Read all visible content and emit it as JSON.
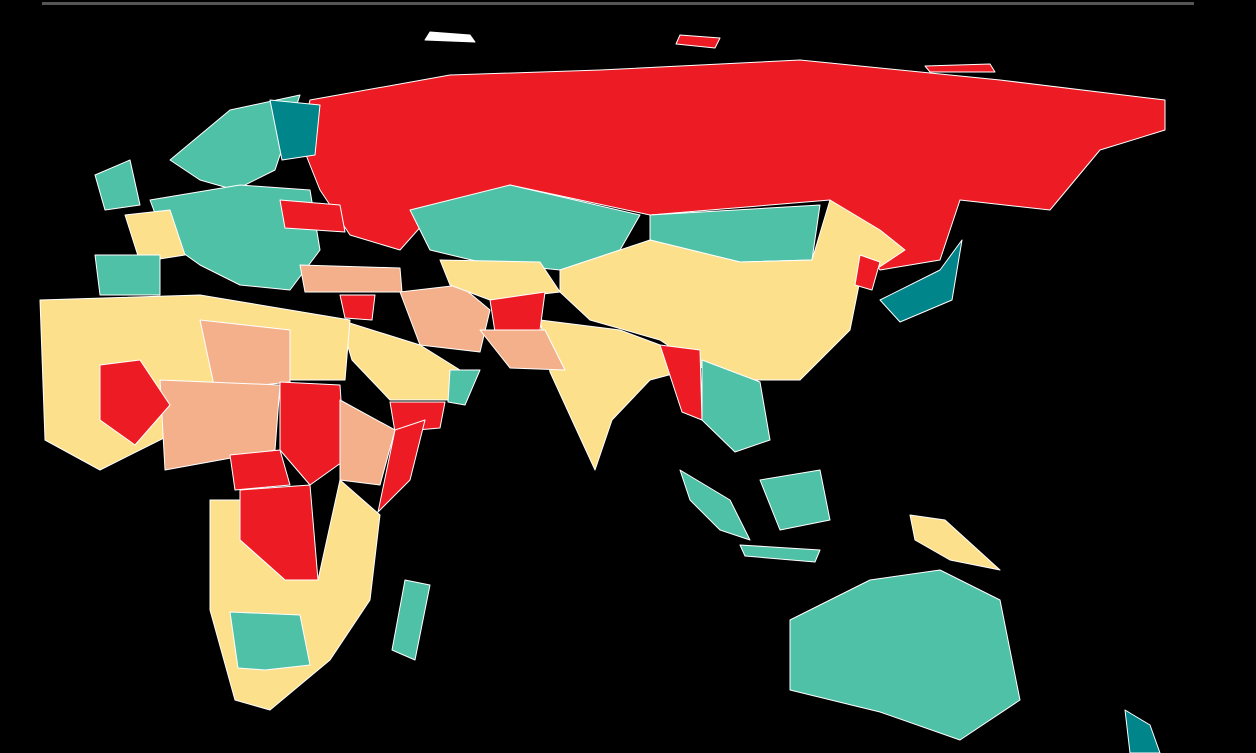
{
  "map": {
    "type": "choropleth",
    "background": "#000000",
    "border_color": "#ffffff",
    "palette": {
      "level-1": "#00858a",
      "level-2": "#4fc1a6",
      "level-3": "#fde08c",
      "level-4": "#f4b08a",
      "level-5": "#ed1c24"
    },
    "regions": [
      {
        "id": "russia",
        "level": "level-5"
      },
      {
        "id": "kazakhstan",
        "level": "level-2"
      },
      {
        "id": "mongolia",
        "level": "level-2"
      },
      {
        "id": "china",
        "level": "level-3"
      },
      {
        "id": "north-korea",
        "level": "level-5"
      },
      {
        "id": "india",
        "level": "level-3"
      },
      {
        "id": "myanmar",
        "level": "level-5"
      },
      {
        "id": "southeast-asia",
        "level": "level-2"
      },
      {
        "id": "japan",
        "level": "level-1"
      },
      {
        "id": "sumatra",
        "level": "level-2"
      },
      {
        "id": "borneo",
        "level": "level-2"
      },
      {
        "id": "java",
        "level": "level-2"
      },
      {
        "id": "papua-new-guinea",
        "level": "level-3"
      },
      {
        "id": "australia",
        "level": "level-2"
      },
      {
        "id": "new-zealand",
        "level": "level-1"
      },
      {
        "id": "scandinavia",
        "level": "level-2"
      },
      {
        "id": "finland",
        "level": "level-1"
      },
      {
        "id": "western-europe",
        "level": "level-2"
      },
      {
        "id": "france",
        "level": "level-3"
      },
      {
        "id": "uk",
        "level": "level-2"
      },
      {
        "id": "iberia",
        "level": "level-2"
      },
      {
        "id": "ukraine",
        "level": "level-5"
      },
      {
        "id": "turkey",
        "level": "level-4"
      },
      {
        "id": "syria",
        "level": "level-5"
      },
      {
        "id": "iran",
        "level": "level-4"
      },
      {
        "id": "central-asia",
        "level": "level-3"
      },
      {
        "id": "afghanistan",
        "level": "level-5"
      },
      {
        "id": "pakistan",
        "level": "level-4"
      },
      {
        "id": "arabia",
        "level": "level-3"
      },
      {
        "id": "oman",
        "level": "level-2"
      },
      {
        "id": "yemen",
        "level": "level-5"
      },
      {
        "id": "north-africa",
        "level": "level-3"
      },
      {
        "id": "libya",
        "level": "level-4"
      },
      {
        "id": "sahel",
        "level": "level-4"
      },
      {
        "id": "mali",
        "level": "level-5"
      },
      {
        "id": "sudan",
        "level": "level-5"
      },
      {
        "id": "ethiopia",
        "level": "level-4"
      },
      {
        "id": "somalia",
        "level": "level-5"
      },
      {
        "id": "central-african-republic",
        "level": "level-5"
      },
      {
        "id": "dr-congo",
        "level": "level-5"
      },
      {
        "id": "southern-africa",
        "level": "level-3"
      },
      {
        "id": "namibia-botswana",
        "level": "level-2"
      },
      {
        "id": "madagascar",
        "level": "level-2"
      }
    ]
  }
}
